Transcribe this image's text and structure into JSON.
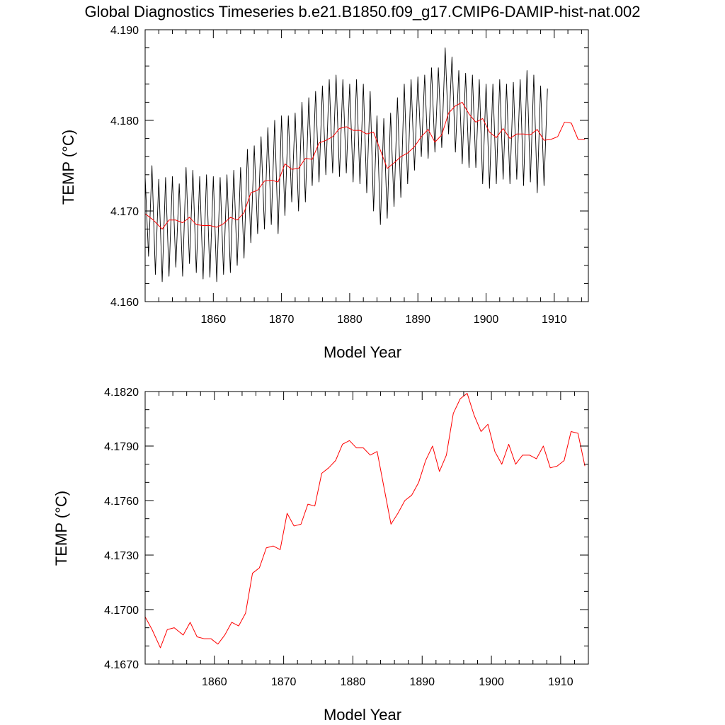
{
  "figure": {
    "title": "Global Diagnostics Timeseries b.e21.B1850.f09_g17.CMIP6-DAMIP-hist-nat.002"
  },
  "colors": {
    "monthly": "#000000",
    "annual": "#ff0000"
  },
  "chart_data": [
    {
      "type": "line",
      "title": "",
      "xlabel": "Model Year",
      "ylabel": "TEMP (°C)",
      "xlim": [
        1850,
        1915
      ],
      "ylim": [
        4.16,
        4.19
      ],
      "xticks": [
        1860,
        1870,
        1880,
        1890,
        1900,
        1910
      ],
      "yticks": [
        4.16,
        4.17,
        4.18,
        4.19
      ],
      "ytick_labels": [
        "4.160",
        "4.170",
        "4.180",
        "4.190"
      ],
      "grid": false,
      "series": [
        {
          "kind": "monthly",
          "color": "#000000",
          "x_start": 1850,
          "step": 0.5,
          "y": [
            4.1738,
            4.165,
            4.175,
            4.163,
            4.1735,
            4.1622,
            4.1737,
            4.1628,
            4.1738,
            4.1638,
            4.173,
            4.1628,
            4.1748,
            4.1642,
            4.1745,
            4.1632,
            4.1738,
            4.1625,
            4.174,
            4.1627,
            4.1738,
            4.1622,
            4.1737,
            4.163,
            4.174,
            4.1632,
            4.1745,
            4.164,
            4.1748,
            4.1648,
            4.1768,
            4.1665,
            4.1772,
            4.1675,
            4.1782,
            4.168,
            4.1792,
            4.1685,
            4.18,
            4.1675,
            4.1805,
            4.1695,
            4.1805,
            4.171,
            4.1808,
            4.17,
            4.182,
            4.171,
            4.1825,
            4.1728,
            4.1832,
            4.1732,
            4.1838,
            4.174,
            4.1845,
            4.1742,
            4.185,
            4.1738,
            4.1845,
            4.1742,
            4.184,
            4.1732,
            4.1845,
            4.173,
            4.184,
            4.172,
            4.1832,
            4.17,
            4.1805,
            4.1685,
            4.1802,
            4.1692,
            4.1808,
            4.1705,
            4.1825,
            4.1715,
            4.184,
            4.173,
            4.1845,
            4.1745,
            4.1848,
            4.176,
            4.185,
            4.1758,
            4.1858,
            4.1765,
            4.1858,
            4.177,
            4.188,
            4.1785,
            4.187,
            4.1765,
            4.1855,
            4.1752,
            4.1852,
            4.1748,
            4.185,
            4.1748,
            4.1845,
            4.173,
            4.184,
            4.1725,
            4.184,
            4.173,
            4.1845,
            4.1735,
            4.184,
            4.173,
            4.1842,
            4.1735,
            4.1845,
            4.1728,
            4.1855,
            4.1732,
            4.185,
            4.172,
            4.1838,
            4.1728,
            4.1835
          ],
          "name": ""
        },
        {
          "kind": "annual",
          "color": "#ff0000",
          "x": [
            1850.0,
            1851.2,
            1852.5,
            1853.5,
            1854.5,
            1855.5,
            1856.5,
            1857.5,
            1858.5,
            1859.5,
            1860.5,
            1861.5,
            1862.5,
            1863.5,
            1864.5,
            1865.5,
            1866.5,
            1867.5,
            1868.5,
            1869.5,
            1870.5,
            1871.5,
            1872.5,
            1873.5,
            1874.5,
            1875.5,
            1876.5,
            1877.5,
            1878.5,
            1879.5,
            1880.5,
            1881.5,
            1882.5,
            1883.5,
            1884.5,
            1885.5,
            1886.5,
            1887.5,
            1888.5,
            1889.5,
            1890.5,
            1891.5,
            1892.5,
            1893.5,
            1894.5,
            1895.5,
            1896.5,
            1897.5,
            1898.5,
            1899.5,
            1900.5,
            1901.5,
            1902.5,
            1903.5,
            1904.5,
            1905.5,
            1906.5,
            1907.5,
            1908.5,
            1909.5,
            1910.5,
            1911.5,
            1912.5,
            1913.5,
            1914.5
          ],
          "y": [
            4.1697,
            4.169,
            4.168,
            4.169,
            4.169,
            4.1687,
            4.1693,
            4.1685,
            4.1684,
            4.1684,
            4.1682,
            4.1686,
            4.1693,
            4.169,
            4.1698,
            4.172,
            4.1723,
            4.1733,
            4.1734,
            4.1732,
            4.1752,
            4.1746,
            4.1747,
            4.1758,
            4.1757,
            4.1775,
            4.1778,
            4.1782,
            4.1791,
            4.1793,
            4.1789,
            4.1789,
            4.1785,
            4.1787,
            4.1767,
            4.1747,
            4.1753,
            4.176,
            4.1764,
            4.1771,
            4.1782,
            4.179,
            4.1776,
            4.1784,
            4.1808,
            4.1816,
            4.182,
            4.1807,
            4.1798,
            4.1802,
            4.1787,
            4.1781,
            4.1791,
            4.178,
            4.1785,
            4.1785,
            4.1784,
            4.179,
            4.1778,
            4.1779,
            4.1782,
            4.1798,
            4.1797,
            4.1779,
            4.1779
          ],
          "name": ""
        }
      ]
    },
    {
      "type": "line",
      "title": "",
      "xlabel": "Model Year",
      "ylabel": "TEMP (°C)",
      "xlim": [
        1850,
        1914
      ],
      "ylim": [
        4.167,
        4.182
      ],
      "xticks": [
        1860,
        1870,
        1880,
        1890,
        1900,
        1910
      ],
      "yticks": [
        4.167,
        4.17,
        4.173,
        4.176,
        4.179,
        4.182
      ],
      "ytick_labels": [
        "4.1670",
        "4.1700",
        "4.1730",
        "4.1760",
        "4.1790",
        "4.1820"
      ],
      "grid": false,
      "series": [
        {
          "kind": "annual",
          "color": "#ff0000",
          "x": [
            1850.0,
            1851.0,
            1852.2,
            1853.2,
            1854.2,
            1855.5,
            1856.5,
            1857.5,
            1858.5,
            1859.5,
            1860.5,
            1861.5,
            1862.5,
            1863.5,
            1864.5,
            1865.5,
            1866.5,
            1867.5,
            1868.5,
            1869.5,
            1870.5,
            1871.5,
            1872.5,
            1873.5,
            1874.5,
            1875.5,
            1876.5,
            1877.5,
            1878.5,
            1879.5,
            1880.5,
            1881.5,
            1882.5,
            1883.5,
            1884.5,
            1885.5,
            1886.5,
            1887.5,
            1888.5,
            1889.5,
            1890.5,
            1891.5,
            1892.5,
            1893.5,
            1894.5,
            1895.5,
            1896.5,
            1897.5,
            1898.5,
            1899.5,
            1900.5,
            1901.5,
            1902.5,
            1903.5,
            1904.5,
            1905.5,
            1906.5,
            1907.5,
            1908.5,
            1909.5,
            1910.5,
            1911.5,
            1912.5,
            1913.5
          ],
          "y": [
            4.1696,
            4.1689,
            4.1679,
            4.1689,
            4.169,
            4.1686,
            4.1693,
            4.1685,
            4.1684,
            4.1684,
            4.1681,
            4.1686,
            4.1693,
            4.1691,
            4.1698,
            4.172,
            4.1723,
            4.1734,
            4.1735,
            4.1733,
            4.1753,
            4.1746,
            4.1747,
            4.1758,
            4.1757,
            4.1775,
            4.1778,
            4.1782,
            4.1791,
            4.1793,
            4.1789,
            4.1789,
            4.1785,
            4.1787,
            4.1767,
            4.1747,
            4.1753,
            4.176,
            4.1763,
            4.177,
            4.1782,
            4.179,
            4.1776,
            4.1785,
            4.1808,
            4.1816,
            4.1819,
            4.1807,
            4.1798,
            4.1802,
            4.1787,
            4.178,
            4.1791,
            4.178,
            4.1785,
            4.1785,
            4.1783,
            4.179,
            4.1778,
            4.1779,
            4.1782,
            4.1798,
            4.1797,
            4.1779
          ],
          "name": ""
        }
      ]
    }
  ]
}
